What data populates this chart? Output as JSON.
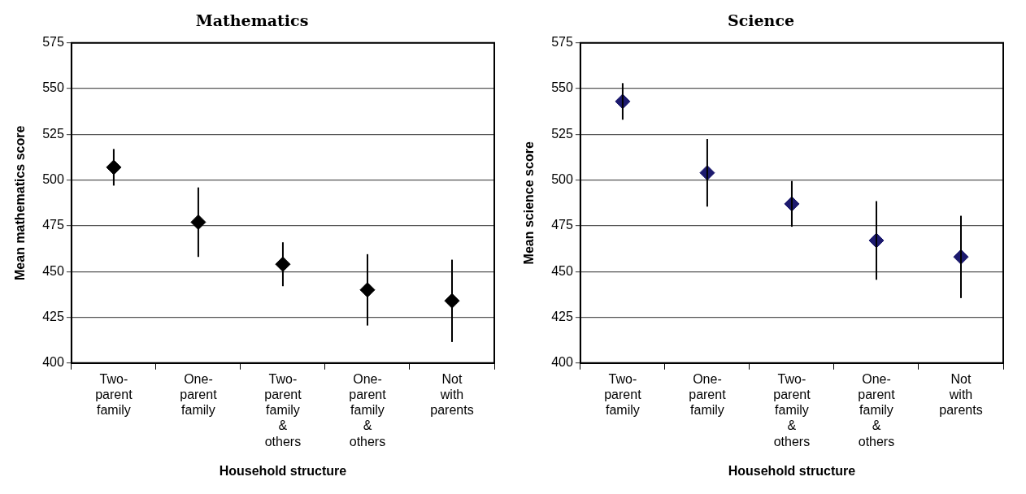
{
  "chart_data": [
    {
      "type": "scatter",
      "title": "Mathematics",
      "xlabel": "Household structure",
      "ylabel": "Mean mathematics score",
      "categories": [
        "Two-parent family",
        "One-parent family",
        "Two-parent family & others",
        "One-parent family & others",
        "Not with parents"
      ],
      "values": [
        507,
        477,
        454,
        440,
        434
      ],
      "errors": [
        10,
        19,
        12,
        19.5,
        22.5
      ],
      "color": "#000000",
      "marker": "diamond",
      "ylim": [
        400,
        575
      ],
      "yticks": [
        400,
        425,
        450,
        475,
        500,
        525,
        550,
        575
      ],
      "grid": "y",
      "legend": false
    },
    {
      "type": "scatter",
      "title": "Science",
      "xlabel": "Household structure",
      "ylabel": "Mean science score",
      "categories": [
        "Two-parent family",
        "One-parent family",
        "Two-parent family & others",
        "One-parent family & others",
        "Not with parents"
      ],
      "values": [
        543,
        504,
        487,
        467,
        458
      ],
      "errors": [
        10,
        18.5,
        12.5,
        21.5,
        22.5
      ],
      "color": "#1c1a6e",
      "marker": "diamond",
      "ylim": [
        400,
        575
      ],
      "yticks": [
        400,
        425,
        450,
        475,
        500,
        525,
        550,
        575
      ],
      "grid": "y",
      "legend": false
    }
  ]
}
